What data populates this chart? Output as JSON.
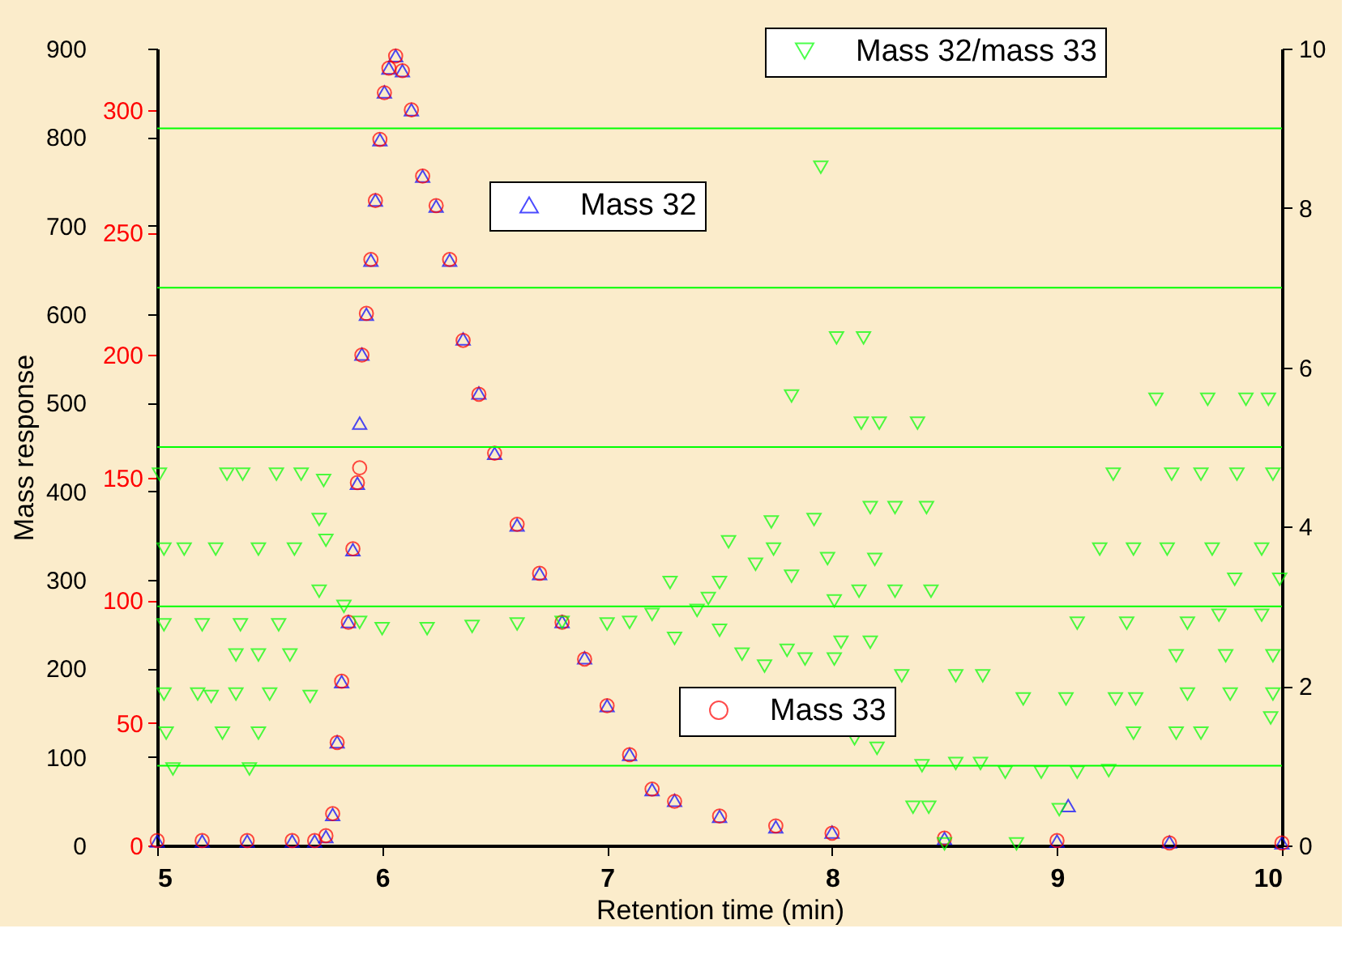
{
  "chart_data": {
    "type": "scatter",
    "xlabel": "Retention time (min)",
    "ylabel": "Mass response",
    "xlim": [
      5,
      10
    ],
    "xticks": [
      5,
      6,
      7,
      8,
      9,
      10
    ],
    "ylim": [
      0,
      900
    ],
    "yticks": [
      0,
      100,
      200,
      300,
      400,
      500,
      600,
      700,
      800,
      900
    ],
    "y3lim": [
      0,
      325
    ],
    "y3ticks": [
      0,
      50,
      100,
      150,
      200,
      250,
      300
    ],
    "y2lim": [
      0,
      10
    ],
    "y2ticks": [
      0,
      2,
      4,
      6,
      8,
      10
    ],
    "grid": false,
    "legend": "top right",
    "ref_lines": [
      {
        "axis": "y2",
        "value": 1,
        "color": "#00ff00"
      },
      {
        "axis": "y2",
        "value": 3,
        "color": "#00ff00"
      },
      {
        "axis": "y2",
        "value": 5,
        "color": "#00ff00"
      },
      {
        "axis": "y2",
        "value": 7,
        "color": "#00ff00"
      },
      {
        "axis": "y2",
        "value": 9,
        "color": "#00ff00"
      }
    ],
    "series": [
      {
        "name": "Mass 32",
        "color": "#0000ff",
        "marker": "triangle",
        "axis": "y",
        "x": [
          5.0,
          5.2,
          5.4,
          5.6,
          5.7,
          5.75,
          5.78,
          5.8,
          5.82,
          5.85,
          5.87,
          5.89,
          5.9,
          5.91,
          5.93,
          5.95,
          5.97,
          5.99,
          6.01,
          6.03,
          6.06,
          6.09,
          6.13,
          6.18,
          6.24,
          6.3,
          6.36,
          6.43,
          6.5,
          6.6,
          6.7,
          6.8,
          6.9,
          7.0,
          7.1,
          7.2,
          7.3,
          7.5,
          7.75,
          8.0,
          8.5,
          9.0,
          9.05,
          9.5,
          10.0
        ],
        "values": [
          5,
          5,
          5,
          5,
          5,
          10,
          35,
          117,
          185,
          253,
          334,
          409,
          477,
          555,
          600,
          661,
          729,
          797,
          851,
          878,
          892,
          875,
          831,
          756,
          722,
          661,
          572,
          511,
          443,
          362,
          307,
          253,
          212,
          158,
          103,
          63,
          51,
          33,
          21,
          15,
          8,
          5,
          45,
          4,
          3
        ]
      },
      {
        "name": "Mass 33",
        "color": "#ff0000",
        "marker": "circle",
        "axis": "y3",
        "x": [
          5.0,
          5.2,
          5.4,
          5.6,
          5.7,
          5.75,
          5.78,
          5.8,
          5.82,
          5.85,
          5.87,
          5.89,
          5.9,
          5.91,
          5.93,
          5.95,
          5.97,
          5.99,
          6.01,
          6.03,
          6.06,
          6.09,
          6.13,
          6.18,
          6.24,
          6.3,
          6.36,
          6.43,
          6.5,
          6.6,
          6.7,
          6.8,
          6.9,
          7.0,
          7.1,
          7.2,
          7.3,
          7.5,
          7.75,
          8.0,
          8.5,
          9.0,
          9.5,
          10.0
        ],
        "values": [
          2,
          2,
          2,
          2,
          2,
          4,
          13,
          42,
          67,
          91,
          121,
          148,
          154,
          200,
          217,
          239,
          263,
          288,
          307,
          317,
          322,
          316,
          300,
          273,
          261,
          239,
          206,
          184,
          160,
          131,
          111,
          91,
          76,
          57,
          37,
          23,
          18,
          12,
          8,
          5,
          3,
          2,
          1,
          1
        ]
      },
      {
        "name": "Mass 32/mass 33",
        "color": "#00ff00",
        "marker": "triangle-down",
        "axis": "y2",
        "x": [
          5.01,
          5.31,
          5.38,
          5.53,
          5.64,
          5.74,
          5.03,
          5.12,
          5.26,
          5.45,
          5.61,
          5.75,
          5.72,
          5.03,
          5.2,
          5.37,
          5.54,
          5.35,
          5.45,
          5.59,
          5.03,
          5.18,
          5.24,
          5.35,
          5.5,
          5.68,
          5.04,
          5.29,
          5.45,
          5.07,
          5.41,
          5.72,
          5.83,
          5.9,
          6.0,
          6.2,
          6.4,
          6.6,
          6.8,
          7.0,
          7.1,
          7.2,
          7.28,
          7.3,
          7.4,
          7.45,
          7.5,
          7.5,
          7.6,
          7.7,
          7.8,
          7.95,
          8.02,
          8.14,
          7.82,
          8.13,
          8.21,
          8.38,
          9.44,
          9.67,
          9.84,
          9.94,
          9.25,
          9.51,
          9.64,
          9.8,
          9.96,
          8.17,
          8.28,
          8.42,
          7.73,
          7.92,
          7.54,
          7.74,
          7.98,
          7.66,
          8.19,
          9.19,
          9.34,
          9.49,
          9.69,
          9.91,
          9.79,
          9.99,
          8.12,
          8.28,
          8.44,
          7.82,
          8.01,
          9.09,
          9.31,
          9.58,
          9.72,
          9.91,
          9.53,
          9.75,
          9.96,
          8.04,
          8.17,
          7.88,
          8.01,
          8.31,
          8.55,
          8.67,
          8.85,
          9.04,
          9.26,
          9.35,
          9.58,
          9.77,
          9.96,
          9.95,
          9.34,
          9.53,
          9.64,
          8.1,
          8.2,
          8.4,
          8.55,
          8.66,
          8.77,
          8.93,
          9.09,
          9.23,
          8.36,
          8.43,
          9.01,
          8.5,
          8.82
        ],
        "values": [
          4.66,
          4.66,
          4.66,
          4.66,
          4.66,
          4.58,
          3.72,
          3.72,
          3.72,
          3.72,
          3.72,
          3.83,
          4.09,
          2.77,
          2.77,
          2.77,
          2.77,
          2.39,
          2.39,
          2.39,
          1.9,
          1.9,
          1.87,
          1.9,
          1.9,
          1.87,
          1.41,
          1.41,
          1.41,
          0.96,
          0.96,
          3.19,
          3.0,
          2.8,
          2.72,
          2.72,
          2.75,
          2.78,
          2.8,
          2.78,
          2.8,
          2.9,
          3.3,
          2.6,
          2.95,
          3.1,
          2.7,
          3.3,
          2.4,
          2.25,
          2.45,
          8.51,
          6.37,
          6.37,
          5.64,
          5.3,
          5.3,
          5.3,
          5.6,
          5.6,
          5.6,
          5.6,
          4.66,
          4.66,
          4.66,
          4.66,
          4.66,
          4.24,
          4.24,
          4.24,
          4.06,
          4.09,
          3.81,
          3.72,
          3.6,
          3.53,
          3.59,
          3.72,
          3.72,
          3.72,
          3.72,
          3.72,
          3.34,
          3.34,
          3.19,
          3.19,
          3.19,
          3.38,
          3.07,
          2.79,
          2.79,
          2.79,
          2.89,
          2.89,
          2.38,
          2.38,
          2.38,
          2.55,
          2.55,
          2.34,
          2.34,
          2.13,
          2.13,
          2.13,
          1.84,
          1.84,
          1.84,
          1.84,
          1.9,
          1.9,
          1.9,
          1.6,
          1.41,
          1.41,
          1.41,
          1.34,
          1.22,
          1.0,
          1.03,
          1.03,
          0.92,
          0.92,
          0.92,
          0.94,
          0.48,
          0.48,
          0.45,
          0.02,
          0.02
        ]
      }
    ]
  }
}
